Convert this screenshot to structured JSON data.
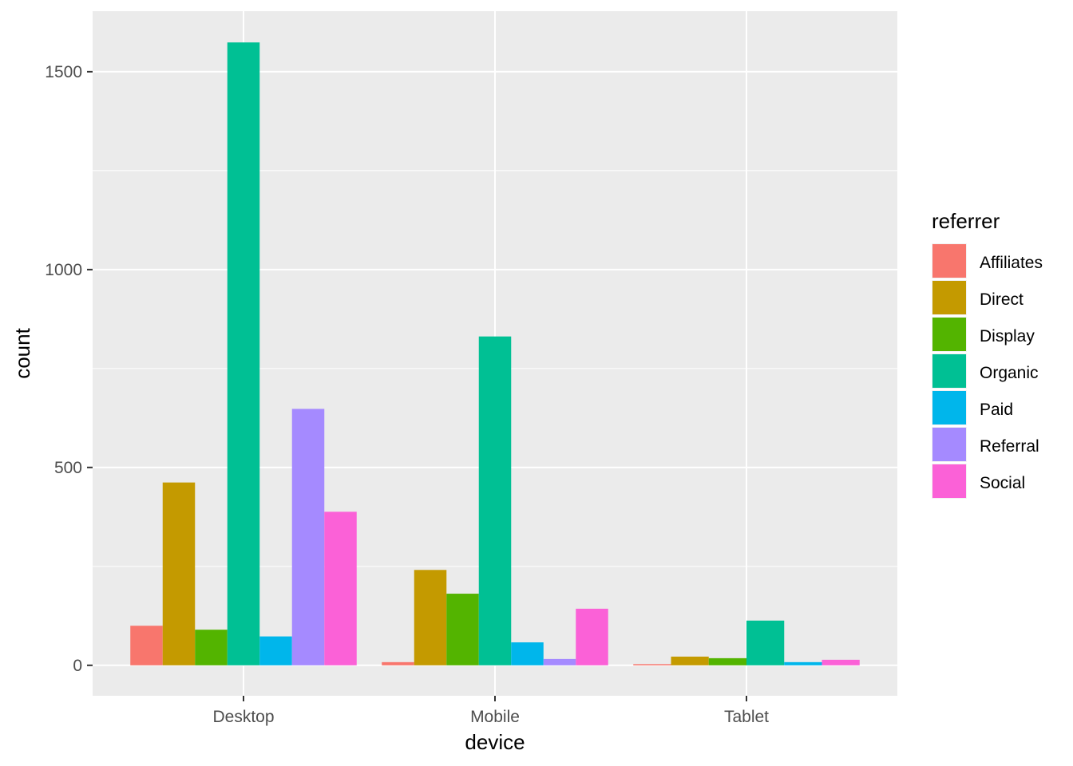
{
  "chart_data": {
    "type": "bar",
    "categories": [
      "Desktop",
      "Mobile",
      "Tablet"
    ],
    "series": [
      {
        "name": "Affiliates",
        "color": "#F8766D",
        "values": [
          100,
          8,
          3
        ]
      },
      {
        "name": "Direct",
        "color": "#C49A00",
        "values": [
          462,
          241,
          22
        ]
      },
      {
        "name": "Display",
        "color": "#53B400",
        "values": [
          90,
          181,
          18
        ]
      },
      {
        "name": "Organic",
        "color": "#00C094",
        "values": [
          1574,
          831,
          113
        ]
      },
      {
        "name": "Paid",
        "color": "#00B6EB",
        "values": [
          73,
          58,
          8
        ]
      },
      {
        "name": "Referral",
        "color": "#A58AFF",
        "values": [
          648,
          16,
          0
        ]
      },
      {
        "name": "Social",
        "color": "#FB61D7",
        "values": [
          388,
          143,
          14
        ]
      }
    ],
    "xlabel": "device",
    "ylabel": "count",
    "ylim": [
      -77,
      1653
    ],
    "yticks": [
      0,
      500,
      1000,
      1500
    ],
    "legend_title": "referrer",
    "legend_position": "right",
    "grid": true,
    "panel_background": "#EBEBEB"
  }
}
